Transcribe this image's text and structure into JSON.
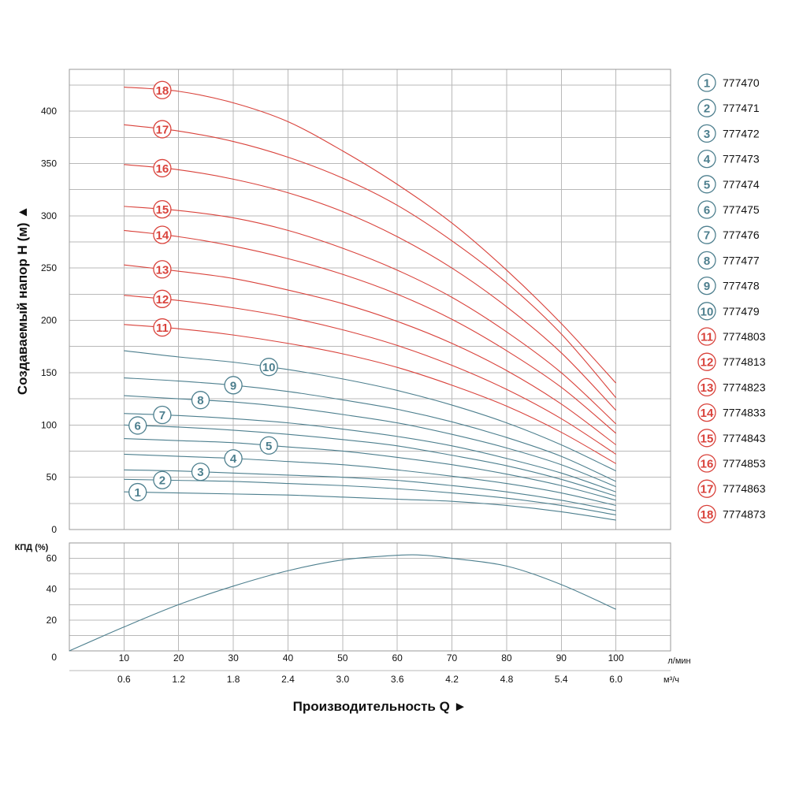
{
  "colors": {
    "blue": "#4d7f8e",
    "red": "#d9423b",
    "grid": "#b9b9b9",
    "text": "#111111"
  },
  "chart_data": [
    {
      "type": "line",
      "title": "",
      "ylabel": "Создаваемый напор H (м) ▲",
      "xlabel": "Производительность Q ►",
      "x_unit": "л/мин",
      "x2_unit": "м³/ч",
      "xlim": [
        0,
        110
      ],
      "ylim": [
        0,
        440
      ],
      "x_ticks": [
        10,
        20,
        30,
        40,
        50,
        60,
        70,
        80,
        90,
        100
      ],
      "x_tick_labels": [
        "10",
        "20",
        "30",
        "40",
        "50",
        "60",
        "70",
        "80",
        "90",
        "100"
      ],
      "x2_ticks": [
        10,
        20,
        30,
        40,
        50,
        60,
        70,
        80,
        90,
        100
      ],
      "x2_tick_labels": [
        "0.6",
        "1.2",
        "1.8",
        "2.4",
        "3.0",
        "3.6",
        "4.2",
        "4.8",
        "5.4",
        "6.0"
      ],
      "y_ticks": [
        0,
        50,
        100,
        150,
        200,
        250,
        300,
        350,
        400
      ],
      "y_tick_labels": [
        "0",
        "50",
        "100",
        "150",
        "200",
        "250",
        "300",
        "350",
        "400"
      ],
      "grid": true,
      "legend": "right",
      "series_x": [
        10,
        20,
        30,
        40,
        50,
        60,
        70,
        80,
        90,
        100
      ],
      "series": [
        {
          "name": "777470",
          "label": "1",
          "color": "blue",
          "values": [
            36,
            35,
            34,
            33,
            31,
            29,
            27,
            23,
            17,
            9
          ],
          "label_at": 12.5
        },
        {
          "name": "777471",
          "label": "2",
          "color": "blue",
          "values": [
            48,
            47,
            46,
            44,
            42,
            39,
            35,
            30,
            23,
            14
          ],
          "label_at": 17
        },
        {
          "name": "777472",
          "label": "3",
          "color": "blue",
          "values": [
            57,
            56,
            54,
            52,
            50,
            47,
            42,
            36,
            28,
            18
          ],
          "label_at": 24
        },
        {
          "name": "777473",
          "label": "4",
          "color": "blue",
          "values": [
            72,
            70,
            68,
            65,
            62,
            57,
            51,
            44,
            35,
            23
          ],
          "label_at": 30
        },
        {
          "name": "777474",
          "label": "5",
          "color": "blue",
          "values": [
            87,
            85,
            83,
            79,
            75,
            69,
            62,
            53,
            42,
            28
          ],
          "label_at": 36.5
        },
        {
          "name": "777475",
          "label": "6",
          "color": "blue",
          "values": [
            100,
            98,
            95,
            91,
            86,
            80,
            71,
            61,
            48,
            32
          ],
          "label_at": 12.5
        },
        {
          "name": "777476",
          "label": "7",
          "color": "blue",
          "values": [
            111,
            109,
            106,
            102,
            96,
            89,
            80,
            68,
            54,
            36
          ],
          "label_at": 17
        },
        {
          "name": "777477",
          "label": "8",
          "color": "blue",
          "values": [
            128,
            125,
            122,
            117,
            110,
            102,
            91,
            78,
            62,
            41
          ],
          "label_at": 24
        },
        {
          "name": "777478",
          "label": "9",
          "color": "blue",
          "values": [
            145,
            142,
            138,
            132,
            124,
            115,
            103,
            88,
            70,
            46
          ],
          "label_at": 30
        },
        {
          "name": "777479",
          "label": "10",
          "color": "blue",
          "values": [
            171,
            165,
            160,
            153,
            144,
            133,
            119,
            102,
            81,
            56
          ],
          "label_at": 36.5
        },
        {
          "name": "7774803",
          "label": "11",
          "color": "red",
          "values": [
            196,
            192,
            186,
            178,
            168,
            155,
            138,
            118,
            93,
            63
          ],
          "label_at": 17
        },
        {
          "name": "7774813",
          "label": "12",
          "color": "red",
          "values": [
            224,
            219,
            212,
            203,
            191,
            176,
            157,
            134,
            106,
            72
          ],
          "label_at": 17
        },
        {
          "name": "7774823",
          "label": "13",
          "color": "red",
          "values": [
            253,
            247,
            240,
            229,
            216,
            199,
            178,
            152,
            120,
            81
          ],
          "label_at": 17
        },
        {
          "name": "7774833",
          "label": "14",
          "color": "red",
          "values": [
            286,
            280,
            271,
            259,
            244,
            225,
            201,
            171,
            136,
            92
          ],
          "label_at": 17
        },
        {
          "name": "7774843",
          "label": "15",
          "color": "red",
          "values": [
            309,
            305,
            298,
            286,
            269,
            248,
            222,
            189,
            150,
            101
          ],
          "label_at": 17
        },
        {
          "name": "7774853",
          "label": "16",
          "color": "red",
          "values": [
            349,
            344,
            335,
            322,
            304,
            280,
            250,
            213,
            169,
            114
          ],
          "label_at": 17
        },
        {
          "name": "7774863",
          "label": "17",
          "color": "red",
          "values": [
            387,
            381,
            371,
            356,
            336,
            310,
            276,
            236,
            187,
            126
          ],
          "label_at": 17
        },
        {
          "name": "7774873",
          "label": "18",
          "color": "red",
          "values": [
            423,
            419,
            408,
            390,
            362,
            330,
            293,
            248,
            197,
            140
          ],
          "label_at": 17
        }
      ]
    },
    {
      "type": "line",
      "title": "",
      "ylabel": "КПД (%)",
      "xlabel": "",
      "xlim": [
        0,
        110
      ],
      "ylim": [
        0,
        70
      ],
      "y_ticks": [
        0,
        20,
        40,
        60
      ],
      "y_tick_labels": [
        "0",
        "20",
        "40",
        "60"
      ],
      "grid": true,
      "series": [
        {
          "name": "КПД",
          "color": "blue",
          "x": [
            0,
            10,
            20,
            30,
            40,
            50,
            60,
            65,
            70,
            80,
            90,
            100
          ],
          "values": [
            0,
            15.5,
            30,
            42,
            52,
            59,
            62,
            62,
            60,
            55,
            43,
            27
          ]
        }
      ]
    }
  ]
}
